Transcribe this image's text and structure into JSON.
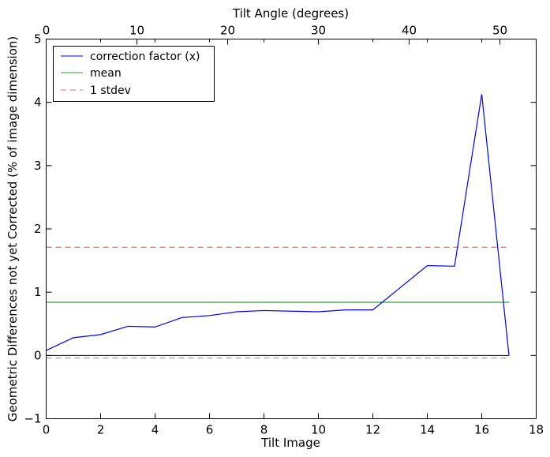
{
  "chart_data": {
    "type": "line",
    "xlabel": "Tilt Image",
    "x2label": "Tilt Angle (degrees)",
    "ylabel": "Geometric Differences not yet Corrected (% of image dimension)",
    "xlim": [
      0,
      18
    ],
    "ylim": [
      -1,
      5
    ],
    "x2lim": [
      0,
      54
    ],
    "x_ticks": [
      0,
      2,
      4,
      6,
      8,
      10,
      12,
      14,
      16,
      18
    ],
    "x2_ticks": [
      0,
      10,
      20,
      30,
      40,
      50
    ],
    "y_ticks": [
      -1,
      0,
      1,
      2,
      3,
      4,
      5
    ],
    "legend_position": "top-left",
    "grid": false,
    "zero_line": 0,
    "series": [
      {
        "name": "correction factor (x)",
        "style": "solid",
        "color": "#0000ff",
        "x": [
          0,
          1,
          2,
          3,
          4,
          5,
          6,
          7,
          8,
          9,
          10,
          11,
          12,
          13,
          14,
          15,
          16,
          17
        ],
        "values": [
          0.08,
          0.28,
          0.33,
          0.46,
          0.45,
          0.6,
          0.63,
          0.69,
          0.71,
          0.7,
          0.69,
          0.72,
          0.72,
          1.07,
          1.42,
          1.41,
          4.13,
          0.0
        ]
      },
      {
        "name": "mean",
        "style": "solid",
        "color": "#2ca02c",
        "x": [
          0,
          17
        ],
        "values": [
          0.84,
          0.84
        ]
      },
      {
        "name": "1 stdev",
        "style": "dashed",
        "color": "#ff6666",
        "x": [
          0,
          17
        ],
        "values": [
          1.71,
          1.71
        ]
      },
      {
        "style": "dashed",
        "color": "#ff6666",
        "x": [
          0,
          17
        ],
        "values": [
          -0.04,
          -0.04
        ]
      }
    ]
  }
}
